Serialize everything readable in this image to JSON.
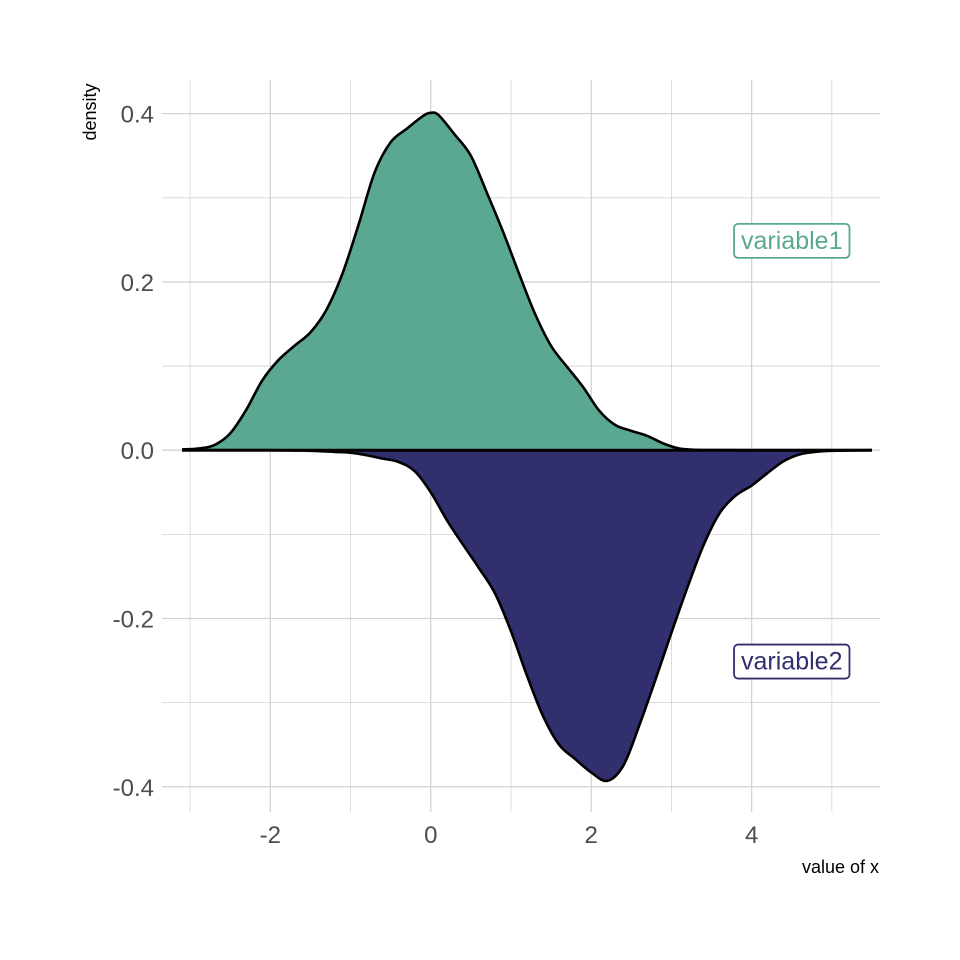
{
  "chart_data": {
    "type": "area",
    "title": "",
    "xlabel": "value of x",
    "ylabel": "density",
    "xlim": [
      -3.35,
      5.6
    ],
    "ylim": [
      -0.43,
      0.44
    ],
    "x_ticks": [
      -2,
      0,
      2,
      4
    ],
    "x_tick_labels": [
      "-2",
      "0",
      "2",
      "4"
    ],
    "y_ticks": [
      -0.4,
      -0.2,
      0.0,
      0.2,
      0.4
    ],
    "y_tick_labels": [
      "-0.4",
      "-0.2",
      "0.0",
      "0.2",
      "0.4"
    ],
    "grid": true,
    "legend": "none",
    "series": [
      {
        "name": "variable1",
        "color": "#5aa892",
        "label_position": {
          "x": 4.5,
          "y": 0.25
        },
        "points": [
          [
            -3.1,
            0.001
          ],
          [
            -2.9,
            0.002
          ],
          [
            -2.7,
            0.006
          ],
          [
            -2.5,
            0.02
          ],
          [
            -2.3,
            0.048
          ],
          [
            -2.1,
            0.083
          ],
          [
            -1.9,
            0.107
          ],
          [
            -1.7,
            0.124
          ],
          [
            -1.5,
            0.14
          ],
          [
            -1.3,
            0.167
          ],
          [
            -1.1,
            0.21
          ],
          [
            -0.9,
            0.268
          ],
          [
            -0.7,
            0.33
          ],
          [
            -0.5,
            0.366
          ],
          [
            -0.3,
            0.382
          ],
          [
            -0.1,
            0.397
          ],
          [
            0.0,
            0.401
          ],
          [
            0.1,
            0.398
          ],
          [
            0.3,
            0.375
          ],
          [
            0.5,
            0.35
          ],
          [
            0.7,
            0.306
          ],
          [
            0.9,
            0.26
          ],
          [
            1.1,
            0.21
          ],
          [
            1.3,
            0.162
          ],
          [
            1.5,
            0.124
          ],
          [
            1.7,
            0.099
          ],
          [
            1.9,
            0.075
          ],
          [
            2.1,
            0.047
          ],
          [
            2.3,
            0.03
          ],
          [
            2.5,
            0.023
          ],
          [
            2.7,
            0.017
          ],
          [
            2.9,
            0.008
          ],
          [
            3.1,
            0.002
          ],
          [
            3.3,
            0.0005
          ],
          [
            3.5,
            0.0002
          ],
          [
            4.0,
            0.0001
          ],
          [
            5.5,
            0.0
          ]
        ]
      },
      {
        "name": "variable2",
        "color": "#322f6f",
        "label_position": {
          "x": 4.5,
          "y": -0.25
        },
        "points": [
          [
            -3.1,
            0.0
          ],
          [
            -2.0,
            0.0
          ],
          [
            -1.6,
            -0.0005
          ],
          [
            -1.4,
            -0.001
          ],
          [
            -1.2,
            -0.002
          ],
          [
            -1.0,
            -0.003
          ],
          [
            -0.8,
            -0.006
          ],
          [
            -0.6,
            -0.01
          ],
          [
            -0.4,
            -0.014
          ],
          [
            -0.2,
            -0.025
          ],
          [
            0.0,
            -0.05
          ],
          [
            0.2,
            -0.083
          ],
          [
            0.4,
            -0.112
          ],
          [
            0.6,
            -0.14
          ],
          [
            0.8,
            -0.17
          ],
          [
            1.0,
            -0.215
          ],
          [
            1.2,
            -0.268
          ],
          [
            1.4,
            -0.316
          ],
          [
            1.6,
            -0.35
          ],
          [
            1.8,
            -0.367
          ],
          [
            2.0,
            -0.383
          ],
          [
            2.2,
            -0.393
          ],
          [
            2.4,
            -0.375
          ],
          [
            2.6,
            -0.327
          ],
          [
            2.8,
            -0.273
          ],
          [
            3.0,
            -0.217
          ],
          [
            3.2,
            -0.163
          ],
          [
            3.4,
            -0.113
          ],
          [
            3.6,
            -0.075
          ],
          [
            3.8,
            -0.054
          ],
          [
            4.0,
            -0.042
          ],
          [
            4.2,
            -0.027
          ],
          [
            4.4,
            -0.013
          ],
          [
            4.6,
            -0.005
          ],
          [
            4.8,
            -0.002
          ],
          [
            5.0,
            -0.0008
          ],
          [
            5.5,
            0.0
          ]
        ]
      }
    ]
  },
  "colors": {
    "grid": "#d3d3d3",
    "outline": "#000000"
  }
}
